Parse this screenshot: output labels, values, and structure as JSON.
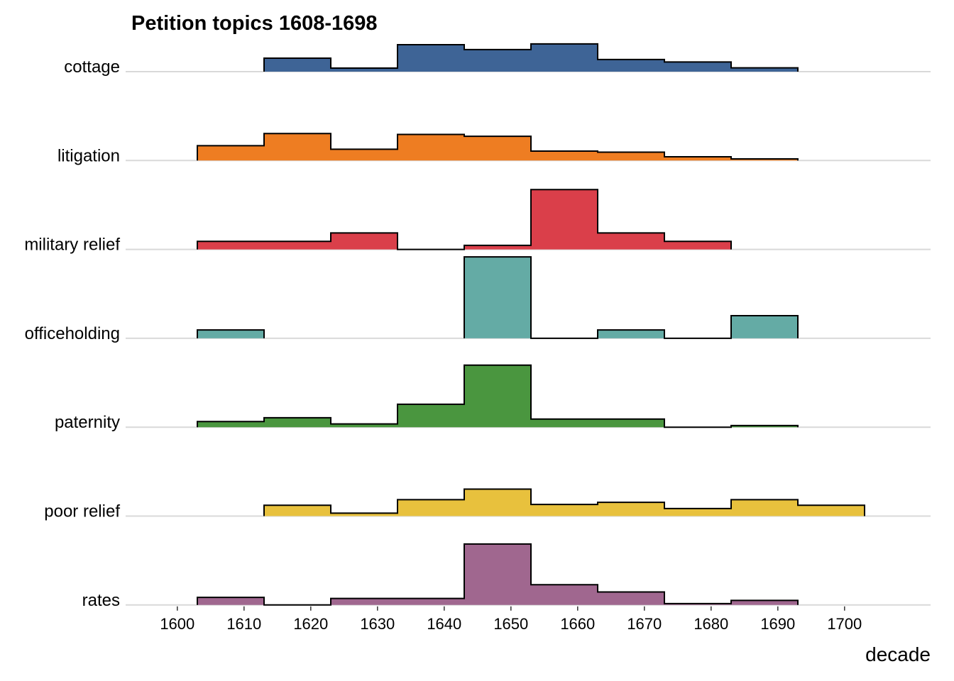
{
  "chart_data": {
    "type": "ridgeline-histogram",
    "title": "Petition topics 1608-1698",
    "xlabel": "decade",
    "ylabel": "",
    "xlim": [
      1592,
      1713
    ],
    "x_ticks": [
      1600,
      1610,
      1620,
      1630,
      1640,
      1650,
      1660,
      1670,
      1680,
      1690,
      1700
    ],
    "bins": [
      1608,
      1618,
      1628,
      1638,
      1648,
      1658,
      1668,
      1678,
      1688,
      1698
    ],
    "bin_width": 10,
    "grid": false,
    "legend": "none",
    "series": [
      {
        "name": "cottage",
        "color": "#3E6496",
        "values": [
          null,
          0.5,
          0.13,
          1.0,
          0.82,
          1.03,
          0.45,
          0.36,
          0.14,
          null
        ]
      },
      {
        "name": "litigation",
        "color": "#EE7D22",
        "values": [
          0.55,
          1.0,
          0.42,
          0.97,
          0.9,
          0.35,
          0.31,
          0.14,
          0.06,
          null
        ]
      },
      {
        "name": "military relief",
        "color": "#DA3F4A",
        "values": [
          0.3,
          0.3,
          0.61,
          0.0,
          0.15,
          2.22,
          0.61,
          0.3,
          null,
          null
        ]
      },
      {
        "name": "officeholding",
        "color": "#64ABA5",
        "values": [
          0.31,
          null,
          null,
          null,
          3.02,
          0.0,
          0.31,
          0.0,
          0.84,
          null
        ]
      },
      {
        "name": "paternity",
        "color": "#4A963F",
        "values": [
          0.21,
          0.35,
          0.12,
          0.85,
          2.3,
          0.3,
          0.3,
          0.0,
          0.06,
          null
        ]
      },
      {
        "name": "poor relief",
        "color": "#E8C13D",
        "values": [
          null,
          0.4,
          0.11,
          0.61,
          1.0,
          0.43,
          0.51,
          0.28,
          0.61,
          0.4
        ]
      },
      {
        "name": "rates",
        "color": "#A0678F",
        "values": [
          0.28,
          0.0,
          0.24,
          0.24,
          2.26,
          0.75,
          0.48,
          0.05,
          0.17,
          null
        ]
      }
    ]
  }
}
